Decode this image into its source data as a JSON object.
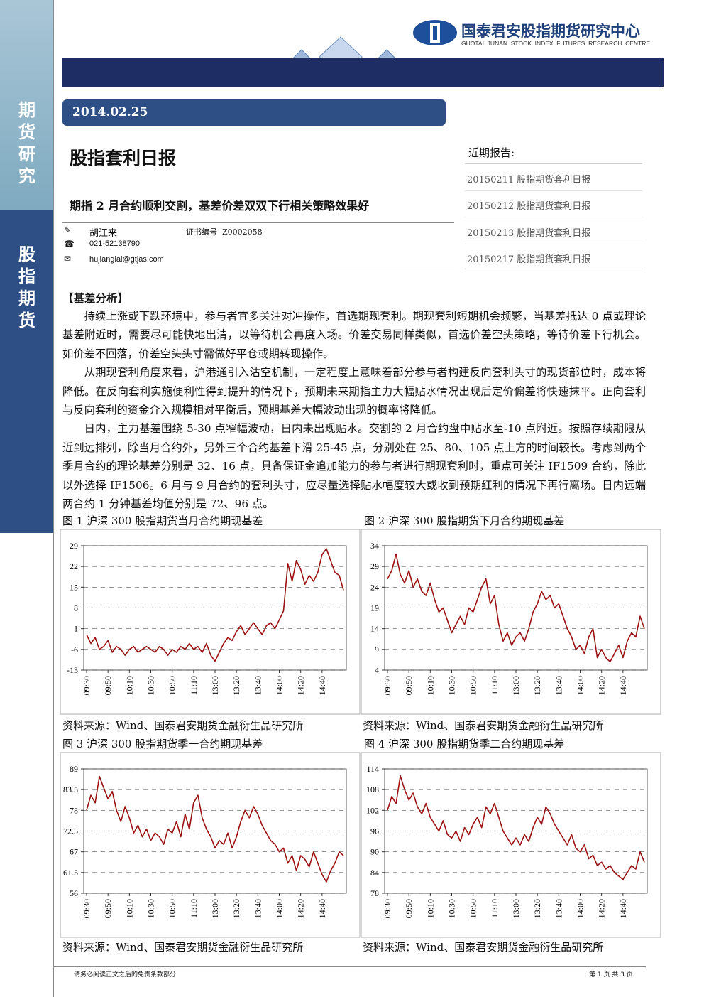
{
  "header": {
    "org": "国泰君安股指期货研究中心",
    "org_en": "GUOTAI  JUNAN  STOCK  INDEX  FUTURES  RESEARCH  CENTRE"
  },
  "sidebar": {
    "top": "期货研究",
    "bottom": "股指期货"
  },
  "report": {
    "date": "2014.02.25",
    "title": "股指套利日报",
    "subtitle": "期指 2 月合约顺利交割，基差价差双双下行相关策略效果好",
    "author": "胡江来",
    "cert": "证书编号  Z0002058",
    "phone": "021-52138790",
    "email": "hujianglai@gtjas.com"
  },
  "recent": {
    "heading": "近期报告:",
    "items": [
      "20150211 股指期货套利日报",
      "20150212 股指期货套利日报",
      "20150213 股指期货套利日报",
      "20150217 股指期货套利日报"
    ]
  },
  "body": {
    "heading": "【基差分析】",
    "paragraphs": [
      "持续上涨或下跌环境中，参与者宜多关注对冲操作，首选期现套利。期现套利短期机会频繁，当基差抵达 0 点或理论基差附近时，需要尽可能快地出清，以等待机会再度入场。价差交易同样类似，首选价差空头策略，等待价差下行机会。如价差不回落，价差空头头寸需做好平仓或期转现操作。",
      "从期现套利角度来看，沪港通引入沽空机制，一定程度上意味着部分参与者构建反向套利头寸的现货部位时，成本将降低。在反向套利实施便利性得到提升的情况下，预期未来期指主力大幅贴水情况出现后定价偏差将快速抹平。正向套利与反向套利的资金介入规模相对平衡后，预期基差大幅波动出现的概率将降低。",
      "日内，主力基差围绕 5-30 点窄幅波动，日内未出现贴水。交割的 2 月合约盘中贴水至-10 点附近。按照存续期限从近到远排列，除当月合约外，另外三个合约基差下滑 25-45 点，分别处在 25、80、105 点上方的时间较长。考虑到两个季月合约的理论基差分别是 32、16 点，具备保证金追加能力的参与者进行期现套利时，重点可关注 IF1509 合约，除此以外选择 IF1506。6 月与 9 月合约的套利头寸，应尽量选择贴水幅度较大或收到预期红利的情况下再行离场。日内远端两合约 1 分钟基差均值分别是 72、96 点。"
    ]
  },
  "footer": {
    "disclaimer": "请务必阅读正文之后的免责条款部分",
    "page": "第 1 页 共 3 页"
  },
  "chart_data": [
    {
      "type": "line",
      "title": "图 1 沪深 300 股指期货当月合约期现基差",
      "source": "资料来源：Wind、国泰君安期货金融衍生品研究所",
      "color": "#9b1111",
      "grid": true,
      "categories": [
        "09:30",
        null,
        null,
        null,
        null,
        "09:50",
        null,
        null,
        null,
        null,
        "10:10",
        null,
        null,
        null,
        null,
        "10:30",
        null,
        null,
        null,
        null,
        "10:50",
        null,
        null,
        null,
        null,
        "11:10",
        null,
        null,
        null,
        null,
        "13:00",
        null,
        null,
        null,
        null,
        "13:20",
        null,
        null,
        null,
        null,
        "13:40",
        null,
        null,
        null,
        null,
        "14:00",
        null,
        null,
        null,
        null,
        "14:20",
        null,
        null,
        null,
        null,
        "14:40",
        null,
        null,
        null,
        null,
        null
      ],
      "values": [
        -1,
        -4,
        -2,
        -6,
        -5,
        -3,
        -7,
        -5,
        -6,
        -8,
        -6,
        -5,
        -7,
        -6,
        -5,
        -6,
        -7,
        -5,
        -6,
        -8,
        -6,
        -7,
        -5,
        -6,
        -4,
        -6,
        -5,
        -7,
        -4,
        -8,
        -10,
        -7,
        -4,
        -2,
        -3,
        0,
        2,
        -1,
        1,
        3,
        1,
        -1,
        2,
        3,
        1,
        4,
        7,
        23,
        17,
        24,
        21,
        16,
        19,
        17,
        20,
        26,
        28,
        24,
        20,
        19,
        14
      ],
      "ylim": [
        -13,
        29
      ],
      "yticks": [
        -13,
        -6,
        1,
        8,
        15,
        22,
        29
      ]
    },
    {
      "type": "line",
      "title": "图 2 沪深 300 股指期货下月合约期现基差",
      "source": "资料来源：Wind、国泰君安期货金融衍生品研究所",
      "color": "#9b1111",
      "grid": true,
      "categories": [
        "09:30",
        null,
        null,
        null,
        null,
        "09:50",
        null,
        null,
        null,
        null,
        "10:10",
        null,
        null,
        null,
        null,
        "10:30",
        null,
        null,
        null,
        null,
        "10:50",
        null,
        null,
        null,
        null,
        "11:10",
        null,
        null,
        null,
        null,
        "13:00",
        null,
        null,
        null,
        null,
        "13:20",
        null,
        null,
        null,
        null,
        "13:40",
        null,
        null,
        null,
        null,
        "14:00",
        null,
        null,
        null,
        null,
        "14:20",
        null,
        null,
        null,
        null,
        "14:40",
        null,
        null,
        null,
        null,
        null
      ],
      "values": [
        26,
        28,
        32,
        27,
        25,
        28,
        24,
        26,
        23,
        22,
        25,
        21,
        18,
        19,
        16,
        13,
        15,
        17,
        15,
        19,
        18,
        21,
        24,
        26,
        20,
        22,
        15,
        11,
        13,
        10,
        12,
        13,
        11,
        14,
        18,
        20,
        23,
        21,
        22,
        19,
        20,
        17,
        14,
        12,
        9,
        10,
        8,
        12,
        14,
        7,
        9,
        7,
        6,
        8,
        10,
        7,
        11,
        13,
        12,
        17,
        14
      ],
      "ylim": [
        4,
        34
      ],
      "yticks": [
        4,
        9,
        14,
        19,
        24,
        29,
        34
      ]
    },
    {
      "type": "line",
      "title": "图 3 沪深 300 股指期货季一合约期现基差",
      "source": "资料来源：Wind、国泰君安期货金融衍生品研究所",
      "color": "#9b1111",
      "grid": true,
      "categories": [
        "09:30",
        null,
        null,
        null,
        null,
        "09:50",
        null,
        null,
        null,
        null,
        "10:10",
        null,
        null,
        null,
        null,
        "10:30",
        null,
        null,
        null,
        null,
        "10:50",
        null,
        null,
        null,
        null,
        "11:10",
        null,
        null,
        null,
        null,
        "13:00",
        null,
        null,
        null,
        null,
        "13:20",
        null,
        null,
        null,
        null,
        "13:40",
        null,
        null,
        null,
        null,
        "14:00",
        null,
        null,
        null,
        null,
        "14:20",
        null,
        null,
        null,
        null,
        "14:40",
        null,
        null,
        null,
        null,
        null
      ],
      "values": [
        78,
        82,
        80,
        87,
        84,
        81,
        83,
        78,
        75,
        79,
        76,
        72,
        74,
        71,
        73,
        70,
        72,
        71,
        69,
        73,
        72,
        75,
        71,
        77,
        73,
        80,
        82,
        76,
        73,
        71,
        68,
        70,
        69,
        72,
        68,
        71,
        75,
        78,
        76,
        79,
        77,
        74,
        72,
        70,
        69,
        67,
        68,
        64,
        66,
        62,
        66,
        65,
        63,
        67,
        64,
        61,
        59,
        62,
        64,
        67,
        66
      ],
      "ylim": [
        56,
        89
      ],
      "yticks": [
        56,
        61.5,
        67,
        72.5,
        78,
        83.5,
        89
      ]
    },
    {
      "type": "line",
      "title": "图 4 沪深 300 股指期货季二合约期现基差",
      "source": "资料来源：Wind、国泰君安期货金融衍生品研究所",
      "color": "#9b1111",
      "grid": true,
      "categories": [
        "09:30",
        null,
        null,
        null,
        null,
        "09:50",
        null,
        null,
        null,
        null,
        "10:10",
        null,
        null,
        null,
        null,
        "10:30",
        null,
        null,
        null,
        null,
        "10:50",
        null,
        null,
        null,
        null,
        "11:10",
        null,
        null,
        null,
        null,
        "13:00",
        null,
        null,
        null,
        null,
        "13:20",
        null,
        null,
        null,
        null,
        "13:40",
        null,
        null,
        null,
        null,
        "14:00",
        null,
        null,
        null,
        null,
        "14:20",
        null,
        null,
        null,
        null,
        "14:40",
        null,
        null,
        null,
        null,
        null
      ],
      "values": [
        102,
        106,
        104,
        112,
        108,
        105,
        107,
        103,
        101,
        104,
        100,
        98,
        96,
        99,
        95,
        94,
        96,
        93,
        97,
        95,
        98,
        100,
        97,
        103,
        101,
        104,
        100,
        96,
        94,
        92,
        94,
        92,
        95,
        93,
        97,
        100,
        98,
        103,
        101,
        98,
        96,
        94,
        92,
        95,
        91,
        90,
        92,
        88,
        89,
        86,
        87,
        85,
        86,
        84,
        83,
        82,
        84,
        86,
        85,
        90,
        87
      ],
      "ylim": [
        78,
        114
      ],
      "yticks": [
        78,
        84,
        90,
        96,
        102,
        108,
        114
      ]
    }
  ]
}
